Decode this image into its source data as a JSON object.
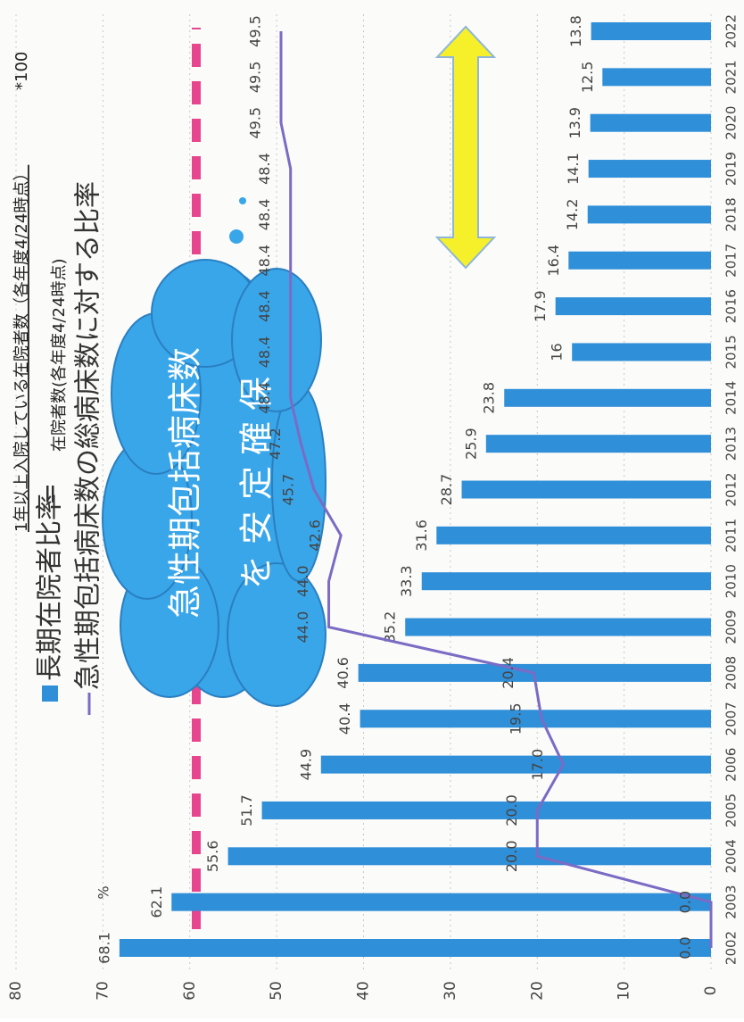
{
  "chart_data": {
    "type": "bar-line",
    "legend_separator": "=",
    "formula_numerator": "1年以上入院している在院者数（各年度4/24時点）",
    "formula_denominator": "在院者数(各年度4/24時点)",
    "formula_multiplier": "*100",
    "unit_label": "%",
    "annotation_line1": "急性期包括病床数",
    "annotation_line2": "を 安 定 確 保",
    "categories": [
      "2002",
      "2003",
      "2004",
      "2005",
      "2006",
      "2007",
      "2008",
      "2009",
      "2010",
      "2011",
      "2012",
      "2013",
      "2014",
      "2015",
      "2016",
      "2017",
      "2018",
      "2019",
      "2020",
      "2021",
      "2022"
    ],
    "series": [
      {
        "name": "長期在院者比率",
        "color": "#2f8fd8",
        "kind": "bar",
        "values": [
          68.1,
          62.1,
          55.6,
          51.7,
          44.9,
          40.4,
          40.6,
          35.2,
          33.3,
          31.6,
          28.7,
          25.9,
          23.8,
          16,
          17.9,
          16.4,
          14.2,
          14.1,
          13.9,
          12.5,
          13.8
        ]
      },
      {
        "name": "急性期包括病床数の総病床数に対する比率",
        "color": "#7b6bc4",
        "kind": "line",
        "values": [
          0,
          0,
          20,
          20,
          17,
          19.5,
          20.4,
          44,
          44,
          42.6,
          45.7,
          47.2,
          48.4,
          48.4,
          48.4,
          48.4,
          48.4,
          48.4,
          49.5,
          49.5,
          49.5
        ],
        "value_labels": [
          "0.0",
          "0.0",
          "20.0",
          "20.0",
          "17.0",
          "19.5",
          "20.4",
          "44.0",
          "44.0",
          "42.6",
          "45.7",
          "47.2",
          "48.4",
          "48.4",
          "48.4",
          "48.4",
          "48.4",
          "48.4",
          "49.5",
          "49.5",
          "49.5"
        ]
      }
    ],
    "ylim": [
      0,
      80
    ],
    "yticks": [
      0,
      10,
      20,
      30,
      40,
      50,
      60,
      70,
      80
    ],
    "grid": true
  }
}
